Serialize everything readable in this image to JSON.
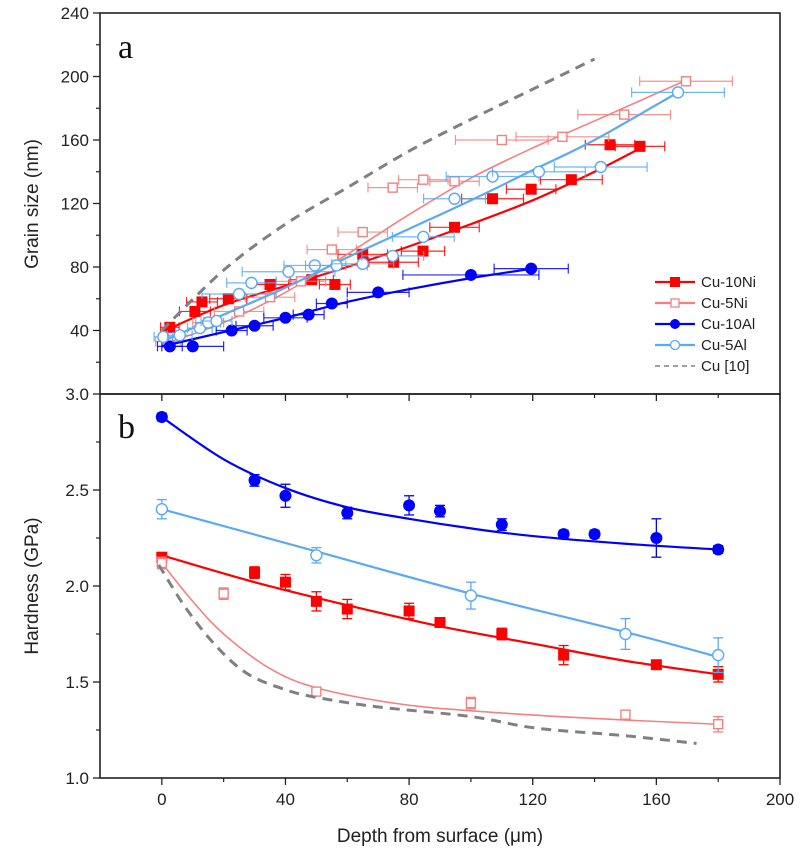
{
  "chart_data": [
    {
      "panel": "a",
      "type": "scatter",
      "title": "",
      "xlabel": "Depth from surface (μm)",
      "ylabel": "Grain size (nm)",
      "xlim": [
        -20,
        200
      ],
      "ylim": [
        0,
        240
      ],
      "xticks": [
        0,
        40,
        80,
        120,
        160,
        200
      ],
      "yticks": [
        40,
        80,
        120,
        160,
        200,
        240
      ],
      "ytick_labels": [
        "40",
        "80",
        "120",
        "160",
        "200",
        "240"
      ],
      "legend": {
        "position": "right-middle",
        "entries": [
          "Cu-10Ni",
          "Cu-5Ni",
          "Cu-10Al",
          "Cu-5Al",
          "Cu [10]"
        ]
      },
      "series": [
        {
          "name": "Cu-10Ni",
          "color": "#ff0000",
          "marker": "square-filled",
          "x": [
            2.6,
            10.7,
            13,
            21.5,
            35,
            48.5,
            56,
            65,
            75,
            84.5,
            94.7,
            107,
            119.5,
            132.5,
            145,
            154.7
          ],
          "y": [
            42,
            52,
            58,
            60,
            69,
            72,
            69,
            88,
            83,
            90,
            105,
            123,
            129,
            135,
            157,
            156
          ],
          "xerr": [
            3,
            5,
            5,
            6,
            6,
            7,
            5,
            8,
            8,
            7,
            8,
            10,
            8,
            10,
            8,
            8
          ],
          "fit": {
            "x": [
              0,
              20,
              40,
              60,
              80,
              100,
              120,
              140,
              155
            ],
            "y": [
              39,
              56,
              68,
              80,
              93,
              107,
              122,
              140,
              155
            ]
          }
        },
        {
          "name": "Cu-5Ni",
          "color": "#f58080",
          "marker": "square-open",
          "x": [
            2,
            15,
            25,
            35,
            45,
            55,
            65,
            74.7,
            84.6,
            94.7,
            110,
            129.6,
            149.6,
            169.6
          ],
          "y": [
            33,
            45,
            52,
            61,
            71,
            91,
            102,
            130,
            135,
            134,
            160,
            162,
            176,
            197
          ],
          "xerr": [
            4,
            5,
            8,
            8,
            8,
            8,
            8,
            8,
            8,
            8,
            15,
            15,
            15,
            15
          ],
          "fit": {
            "x": [
              0,
              20,
              40,
              60,
              80,
              100,
              120,
              140,
              170
            ],
            "y": [
              31,
              45,
              64,
              88,
              113,
              136,
              155,
              172,
              198
            ]
          }
        },
        {
          "name": "Cu-10Al",
          "color": "#0000ff",
          "marker": "circle-filled",
          "x": [
            2.6,
            10,
            22.6,
            30,
            40,
            47.5,
            55,
            70,
            100,
            119.5
          ],
          "y": [
            30,
            30,
            40,
            43,
            48,
            50,
            57,
            64,
            75,
            79
          ],
          "xerr": [
            4,
            10,
            5,
            6,
            7,
            5,
            5,
            10,
            22,
            12
          ],
          "fit": {
            "x": [
              0,
              20,
              40,
              60,
              80,
              100,
              120
            ],
            "y": [
              30,
              39,
              48,
              58,
              66,
              73,
              79
            ]
          }
        },
        {
          "name": "Cu-5Al",
          "color": "#5aaaf5",
          "marker": "circle-open",
          "x": [
            0.5,
            5.8,
            12.3,
            15,
            17.7,
            25,
            29,
            41,
            49.5,
            56.5,
            65,
            74.7,
            84.6,
            94.7,
            107,
            122,
            142,
            167
          ],
          "y": [
            36,
            37,
            41.5,
            45,
            46,
            63,
            70,
            77,
            81,
            81,
            82,
            87,
            99,
            123,
            137,
            140,
            143,
            190
          ],
          "xerr": [
            3,
            4,
            4,
            4,
            5,
            12,
            8,
            15,
            10,
            10,
            10,
            10,
            10,
            10,
            15,
            15,
            15,
            15
          ],
          "fit": {
            "x": [
              0,
              20,
              40,
              60,
              80,
              100,
              120,
              140,
              167
            ],
            "y": [
              33,
              50,
              67,
              86,
              104,
              122,
              141,
              160,
              190
            ]
          }
        },
        {
          "name": "Cu [10]",
          "color": "#808080",
          "marker": "none",
          "line": "dashed",
          "x": [
            0,
            20,
            40,
            60,
            80,
            100,
            120,
            140
          ],
          "y": [
            40,
            78,
            107,
            130,
            153,
            173,
            192,
            211
          ]
        }
      ]
    },
    {
      "panel": "b",
      "type": "scatter",
      "title": "",
      "xlabel": "Depth from surface (μm)",
      "ylabel": "Hardness (GPa)",
      "xlim": [
        -20,
        200
      ],
      "ylim": [
        1.0,
        3.0
      ],
      "xticks": [
        0,
        40,
        80,
        120,
        160,
        200
      ],
      "xtick_labels": [
        "0",
        "40",
        "80",
        "120",
        "160",
        "200"
      ],
      "yticks": [
        1.0,
        1.5,
        2.0,
        2.5,
        3.0
      ],
      "ytick_labels": [
        "1.0",
        "1.5",
        "2.0",
        "2.5",
        "3.0"
      ],
      "series": [
        {
          "name": "Cu-10Ni",
          "color": "#ff0000",
          "marker": "square-filled",
          "x": [
            0,
            30,
            40,
            50,
            60,
            80,
            90,
            110,
            130,
            160,
            180
          ],
          "y": [
            2.15,
            2.07,
            2.02,
            1.92,
            1.88,
            1.87,
            1.81,
            1.75,
            1.64,
            1.59,
            1.54
          ],
          "yerr": [
            0.02,
            0.03,
            0.04,
            0.05,
            0.05,
            0.04,
            0.02,
            0.03,
            0.05,
            0.02,
            0.04
          ],
          "fit": {
            "x": [
              0,
              30,
              60,
              90,
              120,
              150,
              180
            ],
            "y": [
              2.16,
              2.02,
              1.9,
              1.79,
              1.7,
              1.61,
              1.54
            ]
          }
        },
        {
          "name": "Cu-5Ni",
          "color": "#f58080",
          "marker": "square-open",
          "x": [
            0,
            20,
            50,
            100,
            150,
            180
          ],
          "y": [
            2.12,
            1.96,
            1.45,
            1.39,
            1.33,
            1.28
          ],
          "yerr": [
            0.03,
            0.03,
            0.02,
            0.03,
            0.02,
            0.04
          ],
          "fit": {
            "x": [
              0,
              10,
              20,
              35,
              50,
              75,
              100,
              140,
              180
            ],
            "y": [
              2.12,
              1.92,
              1.75,
              1.57,
              1.47,
              1.39,
              1.35,
              1.31,
              1.28
            ]
          }
        },
        {
          "name": "Cu-10Al",
          "color": "#0000ff",
          "marker": "circle-filled",
          "x": [
            0,
            30,
            40,
            60,
            80,
            90,
            110,
            130,
            140,
            160,
            180
          ],
          "y": [
            2.88,
            2.55,
            2.47,
            2.38,
            2.42,
            2.39,
            2.32,
            2.27,
            2.27,
            2.25,
            2.19
          ],
          "yerr": [
            0.02,
            0.03,
            0.06,
            0.03,
            0.05,
            0.03,
            0.03,
            0.02,
            0.02,
            0.1,
            0.02
          ],
          "fit": {
            "x": [
              0,
              20,
              40,
              60,
              80,
              100,
              120,
              150,
              180
            ],
            "y": [
              2.88,
              2.66,
              2.51,
              2.41,
              2.35,
              2.3,
              2.26,
              2.22,
              2.19
            ]
          }
        },
        {
          "name": "Cu-5Al",
          "color": "#5aaaf5",
          "marker": "circle-open",
          "x": [
            0,
            50,
            100,
            150,
            180
          ],
          "y": [
            2.4,
            2.16,
            1.95,
            1.75,
            1.64
          ],
          "yerr": [
            0.05,
            0.04,
            0.07,
            0.08,
            0.09
          ],
          "fit": {
            "x": [
              0,
              50,
              100,
              150,
              180
            ],
            "y": [
              2.4,
              2.18,
              1.96,
              1.76,
              1.63
            ]
          }
        },
        {
          "name": "Cu [10]",
          "color": "#808080",
          "marker": "none",
          "line": "dashed",
          "x": [
            -1,
            8,
            18,
            28,
            40,
            50,
            70,
            100,
            121,
            150,
            173
          ],
          "y": [
            2.11,
            1.88,
            1.68,
            1.54,
            1.46,
            1.42,
            1.37,
            1.32,
            1.26,
            1.22,
            1.18
          ]
        }
      ]
    }
  ],
  "labels": {
    "panel_a": "a",
    "panel_b": "b",
    "x_axis_title": "Depth from surface (μm)",
    "y_axis_title_a": "Grain size (nm)",
    "y_axis_title_b": "Hardness (GPa)"
  }
}
